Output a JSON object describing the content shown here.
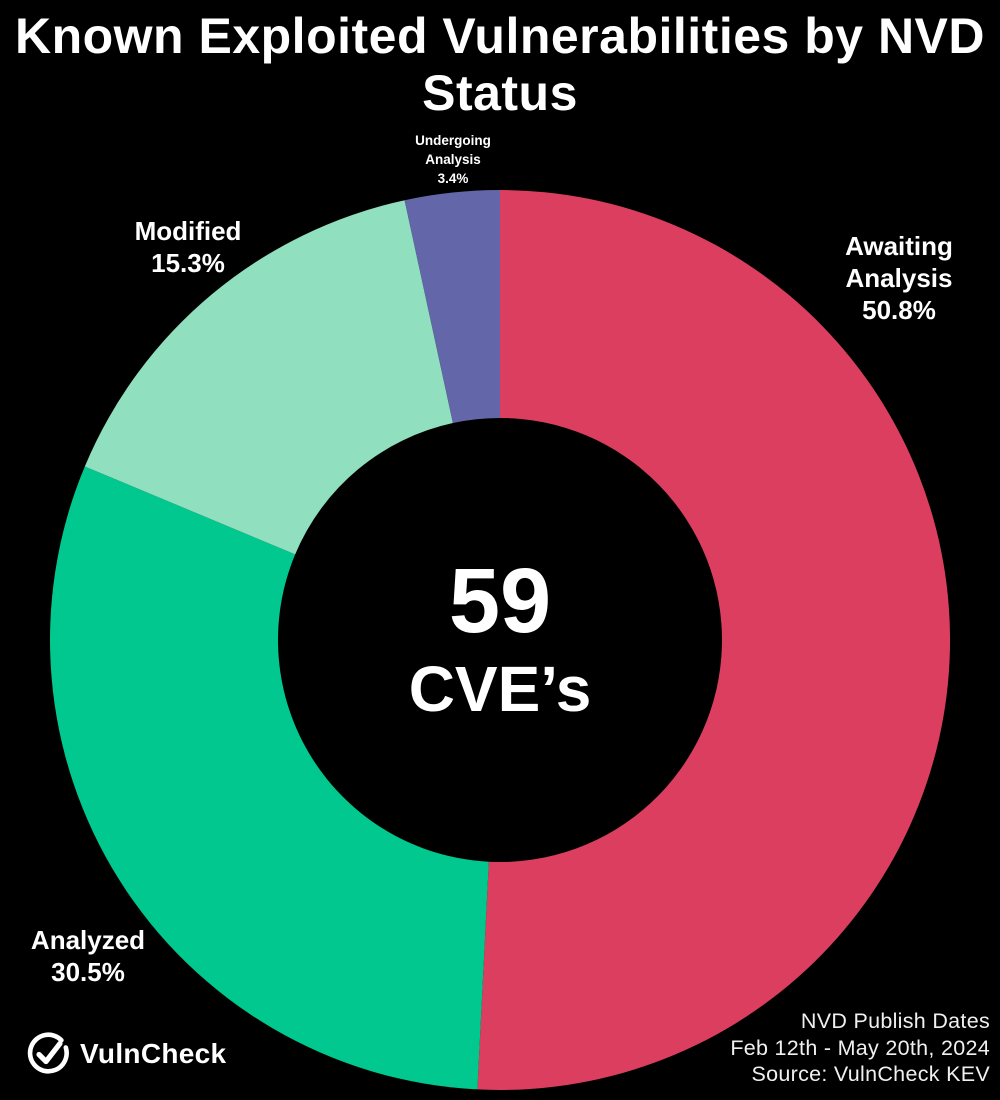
{
  "title": "Known Exploited Vulnerabilities by NVD Status",
  "chart_data": {
    "type": "pie",
    "subtype": "donut",
    "title": "Known Exploited Vulnerabilities by NVD Status",
    "direction": "clockwise",
    "start_angle_deg": 0,
    "total_value": 59,
    "center_label": "59",
    "center_unit": "CVE’s",
    "legend_position": "outside-labels",
    "slices": [
      {
        "label": "Awaiting Analysis",
        "value_pct": 50.8,
        "pct_label": "50.8%",
        "color": "#DC3E5F"
      },
      {
        "label": "Analyzed",
        "value_pct": 30.5,
        "pct_label": "30.5%",
        "color": "#00C88E"
      },
      {
        "label": "Modified",
        "value_pct": 15.3,
        "pct_label": "15.3%",
        "color": "#90DFBE"
      },
      {
        "label": "Undergoing Analysis",
        "value_pct": 3.4,
        "pct_label": "3.4%",
        "color": "#6366A9"
      }
    ]
  },
  "center": {
    "count": "59",
    "unit": "CVE’s"
  },
  "footer": {
    "brand_name": "VulnCheck",
    "brand_icon": "vulncheck-check-circle-icon",
    "note_line1": "NVD Publish Dates",
    "note_line2": "Feb 12th - May 20th, 2024",
    "note_line3": "Source: VulnCheck KEV"
  },
  "colors": {
    "background": "#000000",
    "text": "#FFFFFF",
    "awaiting_analysis": "#DC3E5F",
    "analyzed": "#00C88E",
    "modified": "#90DFBE",
    "undergoing_analysis": "#6366A9"
  }
}
